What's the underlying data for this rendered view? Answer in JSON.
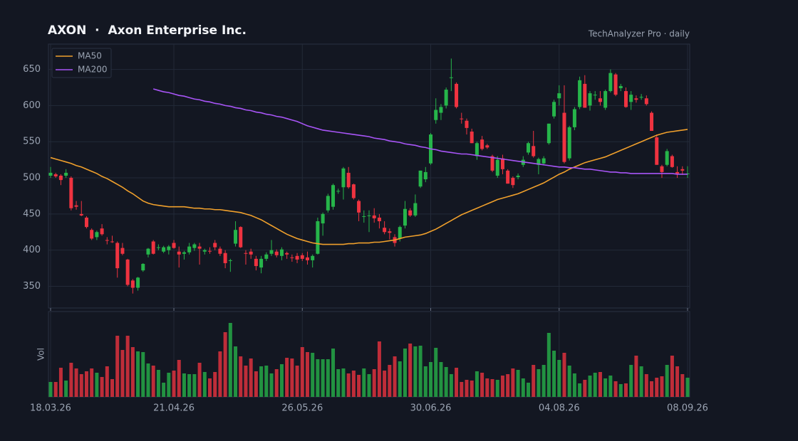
{
  "chart_data": {
    "type": "candlestick",
    "title": "AXON  ·  Axon Enterprise Inc.",
    "subtitle": "TechAnalyzer Pro · daily",
    "volume_label": "Vol",
    "legend": "upper left",
    "grid": true,
    "up_color": "#26b54a",
    "down_color": "#ef3340",
    "ylim": [
      320,
      685
    ],
    "yticks": [
      350,
      400,
      450,
      500,
      550,
      600,
      650
    ],
    "vol_ylim": [
      0,
      120
    ],
    "categories": [
      "18.03.26",
      null,
      null,
      null,
      null,
      null,
      null,
      null,
      null,
      null,
      null,
      null,
      null,
      null,
      null,
      null,
      null,
      null,
      null,
      null,
      null,
      null,
      null,
      null,
      "21.04.26",
      null,
      null,
      null,
      null,
      null,
      null,
      null,
      null,
      null,
      null,
      null,
      null,
      null,
      null,
      null,
      null,
      null,
      null,
      null,
      null,
      null,
      null,
      null,
      null,
      "26.05.26",
      null,
      null,
      null,
      null,
      null,
      null,
      null,
      null,
      null,
      null,
      null,
      null,
      null,
      null,
      null,
      null,
      null,
      null,
      null,
      null,
      null,
      null,
      null,
      null,
      "30.06.26",
      null,
      null,
      null,
      null,
      null,
      null,
      null,
      null,
      null,
      null,
      null,
      null,
      null,
      null,
      null,
      null,
      null,
      null,
      null,
      null,
      null,
      null,
      null,
      null,
      "04.08.26",
      null,
      null,
      null,
      null,
      null,
      null,
      null,
      null,
      null,
      null,
      null,
      null,
      null,
      null,
      null,
      null,
      null,
      null,
      null,
      null,
      null,
      null,
      null,
      null,
      "08.09.26"
    ],
    "ohlc": [
      [
        503,
        515,
        500,
        507
      ],
      [
        505,
        507,
        500,
        502
      ],
      [
        503,
        505,
        490,
        497
      ],
      [
        503,
        512,
        500,
        507
      ],
      [
        500,
        502,
        455,
        458
      ],
      [
        462,
        468,
        456,
        460
      ],
      [
        450,
        468,
        447,
        448
      ],
      [
        445,
        447,
        430,
        432
      ],
      [
        428,
        430,
        414,
        416
      ],
      [
        418,
        427,
        414,
        425
      ],
      [
        430,
        436,
        420,
        422
      ],
      [
        414,
        418,
        408,
        413
      ],
      [
        412,
        420,
        410,
        411
      ],
      [
        410,
        412,
        362,
        375
      ],
      [
        403,
        410,
        393,
        395
      ],
      [
        387,
        388,
        350,
        352
      ],
      [
        358,
        360,
        340,
        348
      ],
      [
        348,
        363,
        344,
        362
      ],
      [
        372,
        382,
        370,
        381
      ],
      [
        394,
        403,
        390,
        402
      ],
      [
        412,
        414,
        394,
        395
      ],
      [
        403,
        408,
        400,
        404
      ],
      [
        398,
        406,
        396,
        404
      ],
      [
        400,
        407,
        394,
        405
      ],
      [
        410,
        414,
        402,
        403
      ],
      [
        398,
        405,
        376,
        394
      ],
      [
        395,
        399,
        387,
        397
      ],
      [
        397,
        410,
        394,
        405
      ],
      [
        403,
        410,
        399,
        408
      ],
      [
        405,
        410,
        380,
        402
      ],
      [
        398,
        402,
        394,
        400
      ],
      [
        399,
        404,
        395,
        398
      ],
      [
        410,
        414,
        400,
        404
      ],
      [
        402,
        405,
        392,
        395
      ],
      [
        396,
        400,
        375,
        382
      ],
      [
        385,
        388,
        370,
        386
      ],
      [
        409,
        440,
        405,
        428
      ],
      [
        432,
        433,
        403,
        404
      ],
      [
        396,
        400,
        380,
        395
      ],
      [
        398,
        402,
        388,
        394
      ],
      [
        388,
        392,
        372,
        378
      ],
      [
        376,
        392,
        368,
        388
      ],
      [
        388,
        397,
        385,
        394
      ],
      [
        395,
        414,
        392,
        400
      ],
      [
        398,
        401,
        390,
        393
      ],
      [
        392,
        404,
        386,
        401
      ],
      [
        396,
        398,
        388,
        394
      ],
      [
        390,
        394,
        384,
        389
      ],
      [
        392,
        396,
        382,
        387
      ],
      [
        393,
        396,
        385,
        388
      ],
      [
        390,
        398,
        380,
        386
      ],
      [
        386,
        394,
        376,
        392
      ],
      [
        395,
        445,
        394,
        440
      ],
      [
        437,
        452,
        420,
        450
      ],
      [
        455,
        478,
        452,
        475
      ],
      [
        460,
        492,
        456,
        490
      ],
      [
        482,
        485,
        478,
        482
      ],
      [
        487,
        515,
        470,
        513
      ],
      [
        507,
        515,
        485,
        487
      ],
      [
        491,
        492,
        470,
        472
      ],
      [
        468,
        470,
        440,
        452
      ],
      [
        446,
        455,
        438,
        447
      ],
      [
        448,
        455,
        425,
        448
      ],
      [
        448,
        458,
        438,
        444
      ],
      [
        445,
        450,
        430,
        440
      ],
      [
        431,
        440,
        422,
        425
      ],
      [
        426,
        430,
        415,
        424
      ],
      [
        418,
        422,
        405,
        410
      ],
      [
        416,
        434,
        412,
        432
      ],
      [
        434,
        468,
        430,
        457
      ],
      [
        455,
        458,
        446,
        448
      ],
      [
        448,
        477,
        446,
        465
      ],
      [
        488,
        510,
        486,
        510
      ],
      [
        498,
        515,
        494,
        508
      ],
      [
        520,
        562,
        518,
        560
      ],
      [
        580,
        610,
        575,
        594
      ],
      [
        590,
        602,
        580,
        598
      ],
      [
        600,
        625,
        596,
        622
      ],
      [
        638,
        665,
        620,
        639
      ],
      [
        630,
        632,
        596,
        598
      ],
      [
        582,
        590,
        575,
        581
      ],
      [
        579,
        582,
        560,
        569
      ],
      [
        564,
        568,
        548,
        548
      ],
      [
        530,
        550,
        525,
        548
      ],
      [
        553,
        558,
        538,
        540
      ],
      [
        545,
        547,
        540,
        542
      ],
      [
        530,
        532,
        508,
        510
      ],
      [
        503,
        530,
        500,
        525
      ],
      [
        527,
        532,
        505,
        512
      ],
      [
        510,
        512,
        492,
        492
      ],
      [
        500,
        502,
        486,
        490
      ],
      [
        501,
        506,
        498,
        503
      ],
      [
        518,
        530,
        515,
        525
      ],
      [
        535,
        550,
        532,
        548
      ],
      [
        544,
        565,
        528,
        530
      ],
      [
        518,
        528,
        505,
        526
      ],
      [
        520,
        530,
        518,
        527
      ],
      [
        548,
        575,
        546,
        575
      ],
      [
        585,
        608,
        582,
        605
      ],
      [
        610,
        628,
        600,
        617
      ],
      [
        590,
        628,
        520,
        522
      ],
      [
        527,
        572,
        524,
        570
      ],
      [
        570,
        598,
        566,
        595
      ],
      [
        598,
        640,
        595,
        635
      ],
      [
        630,
        642,
        597,
        597
      ],
      [
        600,
        620,
        593,
        617
      ],
      [
        614,
        620,
        608,
        615
      ],
      [
        610,
        620,
        600,
        605
      ],
      [
        597,
        622,
        594,
        620
      ],
      [
        620,
        650,
        618,
        645
      ],
      [
        643,
        645,
        613,
        615
      ],
      [
        624,
        630,
        620,
        627
      ],
      [
        620,
        625,
        597,
        598
      ],
      [
        605,
        620,
        594,
        615
      ],
      [
        610,
        614,
        604,
        608
      ],
      [
        611,
        616,
        608,
        612
      ],
      [
        610,
        614,
        600,
        602
      ],
      [
        590,
        592,
        565,
        565
      ],
      [
        556,
        560,
        518,
        518
      ],
      [
        516,
        518,
        500,
        508
      ],
      [
        518,
        540,
        516,
        537
      ],
      [
        530,
        532,
        514,
        515
      ],
      [
        508,
        516,
        500,
        506
      ],
      [
        512,
        516,
        504,
        510
      ],
      [
        505,
        516,
        500,
        506
      ]
    ],
    "volume": [
      21,
      21,
      41,
      23,
      48,
      40,
      32,
      36,
      40,
      34,
      28,
      43,
      25,
      86,
      66,
      86,
      70,
      64,
      63,
      47,
      44,
      38,
      20,
      34,
      37,
      52,
      33,
      32,
      32,
      48,
      35,
      26,
      35,
      64,
      91,
      104,
      71,
      57,
      44,
      54,
      36,
      43,
      44,
      33,
      39,
      46,
      55,
      54,
      44,
      70,
      63,
      62,
      53,
      53,
      53,
      68,
      39,
      40,
      33,
      37,
      31,
      40,
      32,
      39,
      78,
      37,
      45,
      57,
      50,
      68,
      75,
      71,
      72,
      43,
      49,
      69,
      49,
      42,
      32,
      41,
      21,
      24,
      23,
      36,
      34,
      26,
      25,
      24,
      30,
      32,
      40,
      38,
      26,
      20,
      45,
      39,
      45,
      90,
      65,
      52,
      62,
      44,
      33,
      19,
      24,
      30,
      34,
      35,
      26,
      30,
      22,
      18,
      19,
      45,
      58,
      43,
      32,
      22,
      27,
      29,
      45,
      58,
      43,
      32,
      27
    ],
    "series": [
      {
        "name": "MA50",
        "color": "#f0a02c",
        "values": [
          528,
          526,
          524,
          522,
          520,
          517,
          515,
          512,
          509,
          506,
          502,
          499,
          495,
          491,
          487,
          482,
          478,
          473,
          468,
          465,
          463,
          462,
          461,
          460,
          460,
          460,
          460,
          459,
          458,
          458,
          457,
          457,
          456,
          456,
          455,
          454,
          453,
          452,
          450,
          448,
          445,
          442,
          438,
          434,
          430,
          426,
          422,
          419,
          416,
          414,
          412,
          410,
          409,
          408,
          408,
          408,
          408,
          408,
          409,
          409,
          410,
          410,
          410,
          411,
          411,
          412,
          413,
          414,
          416,
          418,
          419,
          420,
          421,
          423,
          426,
          429,
          433,
          437,
          441,
          445,
          449,
          452,
          455,
          458,
          461,
          464,
          467,
          470,
          472,
          474,
          476,
          478,
          481,
          484,
          487,
          490,
          493,
          497,
          501,
          505,
          508,
          512,
          515,
          518,
          521,
          523,
          525,
          527,
          529,
          532,
          535,
          538,
          541,
          544,
          547,
          550,
          553,
          556,
          559,
          561,
          563,
          564,
          565,
          566,
          567
        ]
      },
      {
        "name": "MA200",
        "color": "#a855f7",
        "values": [
          null,
          null,
          null,
          null,
          null,
          null,
          null,
          null,
          null,
          null,
          null,
          null,
          null,
          null,
          null,
          null,
          null,
          null,
          null,
          null,
          623,
          621,
          619,
          618,
          616,
          614,
          613,
          611,
          609,
          608,
          606,
          605,
          603,
          602,
          600,
          599,
          597,
          596,
          594,
          593,
          591,
          590,
          588,
          587,
          585,
          584,
          582,
          580,
          578,
          575,
          572,
          570,
          568,
          566,
          565,
          564,
          563,
          562,
          561,
          560,
          559,
          558,
          557,
          555,
          554,
          553,
          551,
          550,
          549,
          547,
          546,
          545,
          543,
          542,
          540,
          539,
          537,
          536,
          535,
          534,
          533,
          533,
          532,
          531,
          530,
          529,
          528,
          527,
          526,
          525,
          524,
          523,
          522,
          521,
          520,
          519,
          518,
          517,
          516,
          515,
          515,
          514,
          514,
          513,
          512,
          512,
          511,
          510,
          509,
          508,
          508,
          507,
          507,
          506,
          506,
          506,
          506,
          506,
          506,
          506,
          506,
          506,
          505,
          505,
          505
        ]
      }
    ]
  }
}
